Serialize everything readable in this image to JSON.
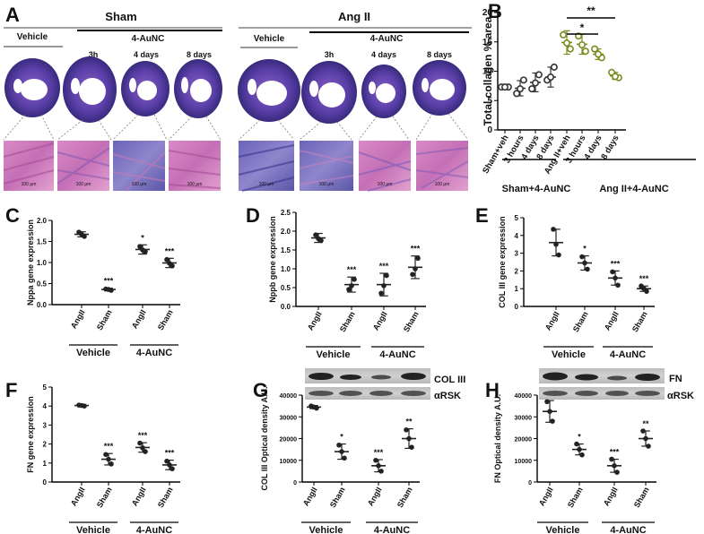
{
  "panelA": {
    "letter": "A",
    "sham": {
      "title": "Sham",
      "vehicle": "Vehicle",
      "treat": "4-AuNC",
      "times": [
        "3h",
        "4 days",
        "8 days"
      ]
    },
    "angii": {
      "title": "Ang II",
      "vehicle": "Vehicle",
      "treat": "4-AuNC",
      "times": [
        "3h",
        "4 days",
        "8 days"
      ]
    },
    "scale_bars": [
      "100 μm",
      "100 μm",
      "100 μm",
      "100 μm",
      "100 μm",
      "100 μm",
      "100 μm",
      "100 μm"
    ],
    "colors": {
      "stain_purple": "#5a3fa8",
      "stain_pink": "#d06fb8",
      "lumen": "#ffffff"
    }
  },
  "chart_data": [
    {
      "id": "B",
      "letter": "B",
      "type": "scatter",
      "ylabel": "Total collagen % area",
      "ylim": [
        0,
        20
      ],
      "yticks": [
        "0",
        "5",
        "10",
        "15",
        "20"
      ],
      "categories": [
        "Sham+veh",
        "3 hours",
        "4 days",
        "8 days",
        "Ang II+veh",
        "3 hours",
        "4 days",
        "8 days"
      ],
      "means": [
        7.3,
        7.1,
        8.1,
        9.0,
        14.9,
        14.6,
        12.9,
        9.2
      ],
      "errs": [
        0.3,
        1.3,
        1.6,
        1.7,
        2.0,
        1.7,
        0.9,
        0.6
      ],
      "points": [
        [
          7.3,
          7.3,
          7.3
        ],
        [
          6.2,
          8.5,
          7.0
        ],
        [
          7.0,
          9.4,
          8.0
        ],
        [
          8.5,
          10.7,
          9.0
        ],
        [
          16.2,
          13.8,
          14.8
        ],
        [
          16.0,
          13.4,
          14.5
        ],
        [
          13.8,
          12.3,
          12.9
        ],
        [
          9.8,
          8.9,
          9.1
        ]
      ],
      "marker_colors": [
        "#333333",
        "#333333",
        "#333333",
        "#333333",
        "#7c8a1f",
        "#7c8a1f",
        "#7c8a1f",
        "#7c8a1f"
      ],
      "groups": [
        "Sham+4-AuNC",
        "Ang II+4-AuNC"
      ],
      "sig": [
        "*",
        "**"
      ]
    },
    {
      "id": "C",
      "letter": "C",
      "type": "scatter",
      "ylabel": "Nppa gene expression",
      "ylim": [
        0,
        2.0
      ],
      "yticks": [
        "0.0",
        "0.5",
        "1.0",
        "1.5",
        "2.0"
      ],
      "categories": [
        "AngII",
        "Sham",
        "AngII",
        "Sham"
      ],
      "means": [
        1.67,
        0.36,
        1.31,
        0.99
      ],
      "errs": [
        0.06,
        0.03,
        0.11,
        0.11
      ],
      "points": [
        [
          1.72,
          1.62,
          1.67
        ],
        [
          0.37,
          0.34,
          0.36
        ],
        [
          1.38,
          1.26,
          1.3
        ],
        [
          1.07,
          0.92,
          0.98
        ]
      ],
      "stars": [
        "",
        "***",
        "*",
        "***"
      ],
      "groups": [
        "Vehicle",
        "4-AuNC"
      ]
    },
    {
      "id": "D",
      "letter": "D",
      "type": "scatter",
      "ylabel": "Nppb gene expression",
      "ylim": [
        0,
        2.5
      ],
      "yticks": [
        "0.0",
        "0.5",
        "1.0",
        "1.5",
        "2.0",
        "2.5"
      ],
      "categories": [
        "AngII",
        "Sham",
        "AngII",
        "Sham"
      ],
      "means": [
        1.82,
        0.58,
        0.58,
        1.04
      ],
      "errs": [
        0.12,
        0.2,
        0.3,
        0.3
      ],
      "points": [
        [
          1.9,
          1.75,
          1.8
        ],
        [
          0.45,
          0.72,
          0.55
        ],
        [
          0.35,
          0.82,
          0.55
        ],
        [
          0.85,
          1.28,
          1.0
        ]
      ],
      "stars": [
        "",
        "***",
        "***",
        "***"
      ],
      "groups": [
        "Vehicle",
        "4-AuNC"
      ]
    },
    {
      "id": "E",
      "letter": "E",
      "type": "scatter",
      "ylabel": "COL III gene expression",
      "ylim": [
        0,
        5
      ],
      "yticks": [
        "0",
        "1",
        "2",
        "3",
        "4",
        "5"
      ],
      "categories": [
        "AngII",
        "Sham",
        "AngII",
        "Sham"
      ],
      "means": [
        3.6,
        2.45,
        1.6,
        1.0
      ],
      "errs": [
        0.75,
        0.4,
        0.4,
        0.15
      ],
      "points": [
        [
          4.35,
          2.9,
          3.5
        ],
        [
          2.8,
          2.1,
          2.45
        ],
        [
          1.95,
          1.2,
          1.6
        ],
        [
          1.15,
          0.85,
          1.0
        ]
      ],
      "stars": [
        "",
        "*",
        "***",
        "***"
      ],
      "groups": [
        "Vehicle",
        "4-AuNC"
      ]
    },
    {
      "id": "F",
      "letter": "F",
      "type": "scatter",
      "ylabel": "FN gene expression",
      "ylim": [
        0,
        5
      ],
      "yticks": [
        "0",
        "1",
        "2",
        "3",
        "4",
        "5"
      ],
      "categories": [
        "AngII",
        "Sham",
        "AngII",
        "Sham"
      ],
      "means": [
        4.03,
        1.2,
        1.82,
        0.9
      ],
      "errs": [
        0.05,
        0.3,
        0.25,
        0.25
      ],
      "points": [
        [
          4.05,
          4.0,
          4.03
        ],
        [
          1.45,
          0.95,
          1.2
        ],
        [
          2.05,
          1.6,
          1.8
        ],
        [
          1.1,
          0.7,
          0.9
        ]
      ],
      "stars": [
        "",
        "***",
        "***",
        "***"
      ],
      "groups": [
        "Vehicle",
        "4-AuNC"
      ]
    },
    {
      "id": "G",
      "letter": "G",
      "type": "scatter",
      "ylabel": "COL III Optical density A.U.",
      "ylim": [
        0,
        40000
      ],
      "yticks": [
        "0",
        "10000",
        "20000",
        "30000",
        "40000"
      ],
      "categories": [
        "AngII",
        "Sham",
        "AngII",
        "Sham"
      ],
      "means": [
        34500,
        14000,
        7500,
        20000
      ],
      "errs": [
        700,
        3500,
        2800,
        4500
      ],
      "points": [
        [
          35000,
          34000,
          34500
        ],
        [
          17000,
          11000,
          14000
        ],
        [
          10000,
          5000,
          7500
        ],
        [
          24000,
          16000,
          20000
        ]
      ],
      "stars": [
        "",
        "*",
        "***",
        "**"
      ],
      "groups": [
        "Vehicle",
        "4-AuNC"
      ],
      "blot_labels": [
        "COL III",
        "αRSK"
      ]
    },
    {
      "id": "H",
      "letter": "H",
      "type": "scatter",
      "ylabel": "FN Optical density A.U.",
      "ylim": [
        0,
        40000
      ],
      "yticks": [
        "0",
        "10000",
        "20000",
        "30000",
        "40000"
      ],
      "categories": [
        "AngII",
        "Sham",
        "AngII",
        "Sham"
      ],
      "means": [
        32500,
        15000,
        7500,
        20000
      ],
      "errs": [
        5000,
        2500,
        3000,
        3500
      ],
      "points": [
        [
          37000,
          28000,
          32500
        ],
        [
          17500,
          12500,
          15000
        ],
        [
          10500,
          4500,
          7500
        ],
        [
          23500,
          16500,
          20000
        ]
      ],
      "stars": [
        "",
        "*",
        "***",
        "**"
      ],
      "groups": [
        "Vehicle",
        "4-AuNC"
      ],
      "blot_labels": [
        "FN",
        "αRSK"
      ]
    }
  ]
}
